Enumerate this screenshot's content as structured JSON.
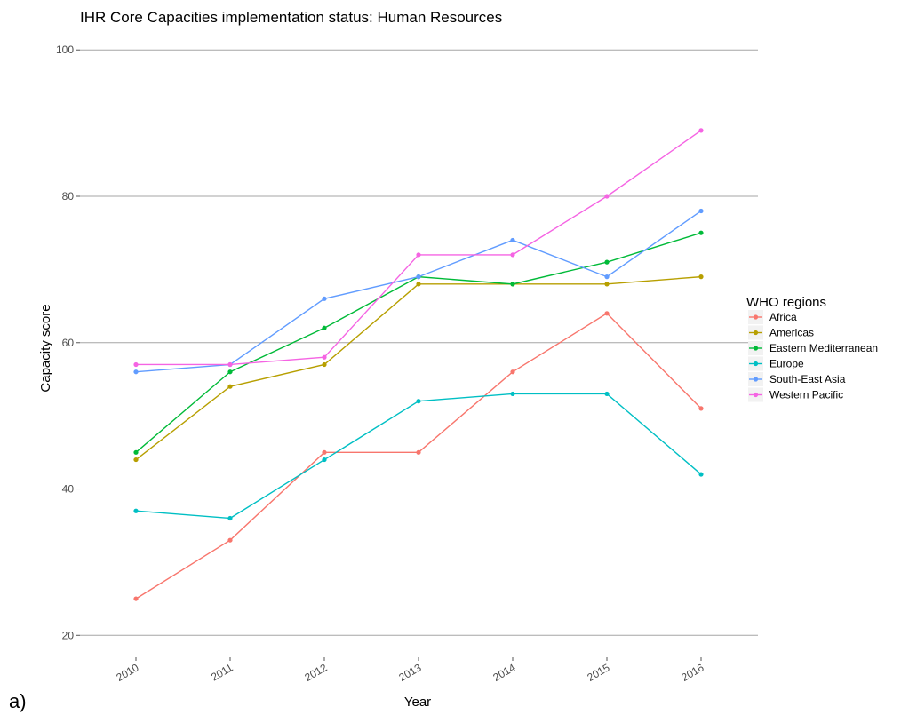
{
  "panel_label": "a)",
  "chart_data": {
    "type": "line",
    "title": "IHR Core Capacities implementation status: Human Resources",
    "xlabel": "Year",
    "ylabel": "Capacity score",
    "x": [
      "2010",
      "2011",
      "2012",
      "2013",
      "2014",
      "2015",
      "2016"
    ],
    "y_ticks": [
      20,
      40,
      60,
      80,
      100
    ],
    "ylim": [
      17,
      101
    ],
    "grid": true,
    "legend": {
      "title": "WHO regions",
      "placement": "right"
    },
    "series": [
      {
        "name": "Africa",
        "color": "#F8766D",
        "values": [
          25,
          33,
          45,
          45,
          56,
          64,
          51
        ]
      },
      {
        "name": "Americas",
        "color": "#B79F00",
        "values": [
          44,
          54,
          57,
          68,
          68,
          68,
          69
        ]
      },
      {
        "name": "Eastern Mediterranean",
        "color": "#00BA38",
        "values": [
          45,
          56,
          62,
          69,
          68,
          71,
          75
        ]
      },
      {
        "name": "Europe",
        "color": "#00BFC4",
        "values": [
          37,
          36,
          44,
          52,
          53,
          53,
          42
        ]
      },
      {
        "name": "South-East Asia",
        "color": "#619CFF",
        "values": [
          56,
          57,
          66,
          69,
          74,
          69,
          78
        ]
      },
      {
        "name": "Western Pacific",
        "color": "#F564E3",
        "values": [
          57,
          57,
          58,
          72,
          72,
          80,
          89
        ]
      }
    ]
  }
}
